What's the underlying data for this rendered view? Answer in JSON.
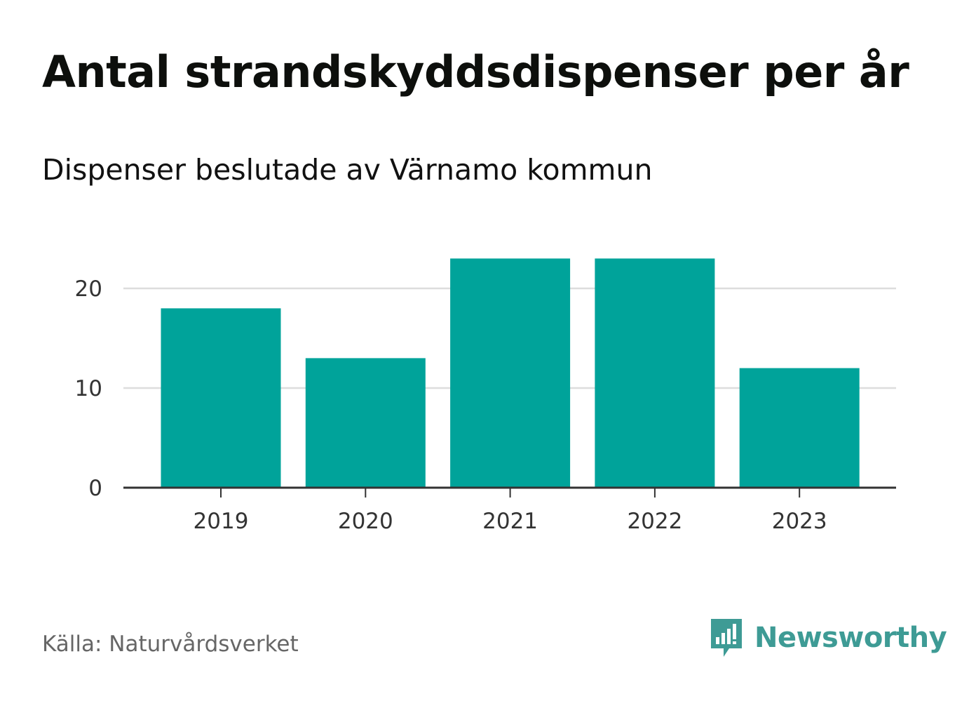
{
  "chart_data": {
    "type": "bar",
    "title": "Antal strandskyddsdispenser per år",
    "subtitle": "Dispenser beslutade av Värnamo kommun",
    "categories": [
      "2019",
      "2020",
      "2021",
      "2022",
      "2023"
    ],
    "values": [
      18,
      13,
      23,
      23,
      12
    ],
    "xlabel": "",
    "ylabel": "",
    "ylim": [
      0,
      23
    ],
    "yticks": [
      0,
      10,
      20
    ],
    "grid": true,
    "bar_color": "#00a39a",
    "source": "Källa: Naturvårdsverket"
  },
  "brand": {
    "name": "Newsworthy",
    "color": "#3e9b95",
    "icon": "speech-bubble-bar-chart-icon"
  }
}
